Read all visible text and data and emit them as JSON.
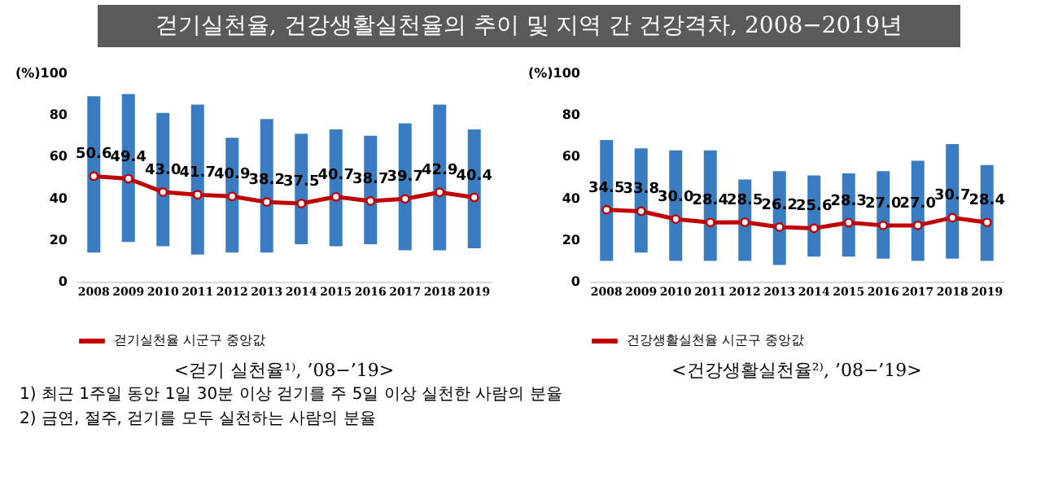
{
  "chart_data": [
    {
      "type": "bar",
      "title": "걷기실천율, 건강생활실천율의 추이 및 지역 간 건강격차, 2008−2019년",
      "subtitle": "<걷기 실천율¹⁾, ’08−’19>",
      "annotations": [
        "1) 최근 1주일 동안 1일 30분 이상 걷기를 주 5일 이상 실천한 사람의 분율",
        "2) 금연, 절주, 걷기를 모두 실천하는 사람의 분율"
      ],
      "categories": [
        "2008",
        "2009",
        "2010",
        "2011",
        "2012",
        "2013",
        "2014",
        "2015",
        "2016",
        "2017",
        "2018",
        "2019"
      ],
      "series": [
        {
          "color": "#3a7cc2",
          "base": [
            14,
            19,
            17,
            13,
            14,
            14,
            18,
            17,
            18,
            15,
            15,
            16
          ],
          "values": [
            75,
            71,
            64,
            72,
            55,
            64,
            53,
            56,
            52,
            61,
            70,
            57
          ]
        },
        {
          "type": "line",
          "name": "걷기실천율 시군구 중앙값",
          "color": "#c00000",
          "marker": "circle",
          "values": [
            50.6,
            49.4,
            43.0,
            41.7,
            40.9,
            38.2,
            37.5,
            40.7,
            38.7,
            39.7,
            42.9,
            40.4
          ],
          "value_labels": [
            "50.6",
            "49.4",
            "43.0",
            "41.7",
            "40.9",
            "38.2",
            "37.5",
            "40.7",
            "38.7",
            "39.7",
            "42.9",
            "40.4"
          ]
        }
      ],
      "ylim": [
        0,
        100
      ],
      "yticks": [
        0,
        20,
        40,
        60,
        80,
        {
          "value": 100,
          "label": "(%)100"
        }
      ],
      "legend": "bottom"
    },
    {
      "type": "bar",
      "subtitle": "<건강생활실천율²⁾, ’08−’19>",
      "categories": [
        "2008",
        "2009",
        "2010",
        "2011",
        "2012",
        "2013",
        "2014",
        "2015",
        "2016",
        "2017",
        "2018",
        "2019"
      ],
      "series": [
        {
          "color": "#3a7cc2",
          "base": [
            10,
            14,
            10,
            10,
            10,
            8,
            12,
            12,
            11,
            10,
            11,
            10
          ],
          "values": [
            58,
            50,
            53,
            53,
            39,
            45,
            39,
            40,
            42,
            48,
            55,
            46
          ]
        },
        {
          "type": "line",
          "name": "건강생활실천율 시군구 중앙값",
          "color": "#c00000",
          "marker": "circle",
          "values": [
            34.5,
            33.8,
            30.0,
            28.4,
            28.5,
            26.2,
            25.6,
            28.3,
            27.0,
            27.0,
            30.7,
            28.4
          ],
          "value_labels": [
            "34.5",
            "33.8",
            "30.0",
            "28.4",
            "28.5",
            "26.2",
            "25.6",
            "28.3",
            "27.0",
            "27.0",
            "30.7",
            "28.4"
          ]
        }
      ],
      "ylim": [
        0,
        100
      ],
      "yticks": [
        0,
        20,
        40,
        60,
        80,
        {
          "value": 100,
          "label": "(%)100"
        }
      ],
      "legend": "bottom"
    }
  ]
}
